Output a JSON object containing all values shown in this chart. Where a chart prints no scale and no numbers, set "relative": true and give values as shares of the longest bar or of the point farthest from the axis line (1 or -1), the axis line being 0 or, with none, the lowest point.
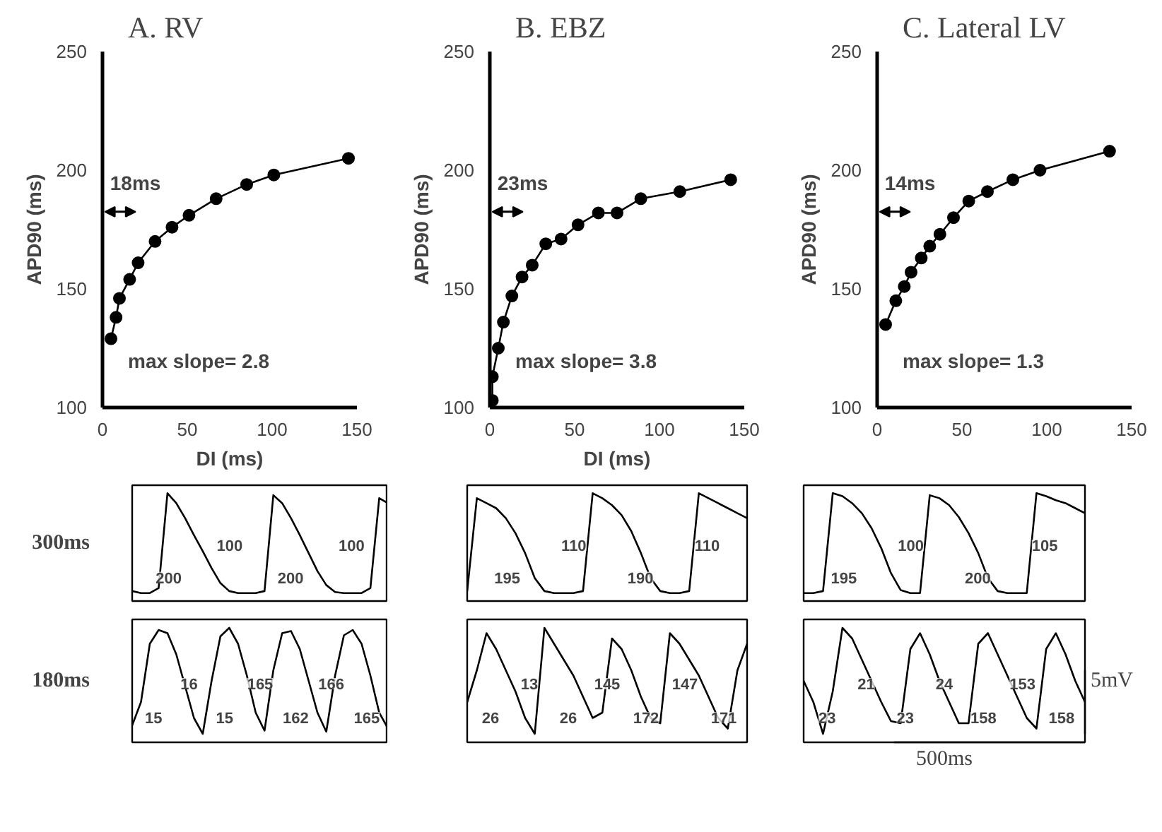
{
  "chart_data": [
    {
      "type": "line",
      "title": "A. RV",
      "xlabel": "DI (ms)",
      "ylabel": "APD90 (ms)",
      "marker": "circle",
      "xlim": [
        0,
        150
      ],
      "xticks": [
        0,
        50,
        100,
        150
      ],
      "ylim": [
        100,
        250
      ],
      "yticks": [
        100,
        150,
        200,
        250
      ],
      "annotations": [
        "18ms",
        "max slope= 2.8"
      ],
      "series": [
        {
          "color": "#000000",
          "x": [
            5,
            8,
            10,
            16,
            21,
            31,
            41,
            51,
            67,
            85,
            101,
            145
          ],
          "values": [
            129,
            138,
            146,
            154,
            161,
            170,
            176,
            181,
            188,
            194,
            198,
            205
          ]
        }
      ]
    },
    {
      "type": "line",
      "title": "B. EBZ",
      "xlabel": "DI (ms)",
      "ylabel": "APD90 (ms)",
      "marker": "circle",
      "xlim": [
        0,
        150
      ],
      "xticks": [
        0,
        50,
        100,
        150
      ],
      "ylim": [
        100,
        250
      ],
      "yticks": [
        100,
        150,
        200,
        250
      ],
      "annotations": [
        "23ms",
        "max slope= 3.8"
      ],
      "series": [
        {
          "color": "#000000",
          "x": [
            1.5,
            1.5,
            5,
            8,
            13,
            19,
            25,
            33,
            42,
            52,
            64,
            75,
            89,
            112,
            142
          ],
          "values": [
            103,
            113,
            125,
            136,
            147,
            155,
            160,
            169,
            171,
            177,
            182,
            182,
            188,
            191,
            196
          ]
        }
      ]
    },
    {
      "type": "line",
      "title": "C. Lateral LV",
      "ylabel": "APD90 (ms)",
      "marker": "circle",
      "xlim": [
        0,
        150
      ],
      "xticks": [
        0,
        50,
        100,
        150
      ],
      "ylim": [
        100,
        250
      ],
      "yticks": [
        100,
        150,
        200,
        250
      ],
      "annotations": [
        "14ms",
        "max slope= 1.3"
      ],
      "series": [
        {
          "color": "#000000",
          "x": [
            5,
            11,
            16,
            20,
            26,
            31,
            37,
            45,
            54,
            65,
            80,
            96,
            137
          ],
          "values": [
            135,
            145,
            151,
            157,
            163,
            168,
            173,
            180,
            187,
            191,
            196,
            200,
            208
          ]
        }
      ]
    },
    {
      "type": "line",
      "relative": true,
      "ylabel": "300ms",
      "annotations": [
        "200",
        "100",
        "200",
        "100"
      ],
      "categories": [
        null,
        null,
        null,
        null,
        null,
        null,
        null,
        null,
        null,
        null,
        null,
        null,
        null,
        null,
        null,
        null,
        null,
        null,
        null,
        null,
        null,
        null,
        null,
        null,
        null,
        null,
        null,
        null,
        null,
        null
      ],
      "series": [
        {
          "color": "#000000",
          "values": [
            0.02,
            0.0,
            0.0,
            0.05,
            1.0,
            0.9,
            0.75,
            0.58,
            0.42,
            0.25,
            0.1,
            0.02,
            0.0,
            0.0,
            0.0,
            0.02,
            0.98,
            0.9,
            0.75,
            0.58,
            0.4,
            0.22,
            0.08,
            0.01,
            0.0,
            0.0,
            0.0,
            0.05,
            0.95,
            0.9
          ]
        }
      ]
    },
    {
      "type": "line",
      "relative": true,
      "annotations": [
        "195",
        "110",
        "190",
        "110"
      ],
      "categories": [
        null,
        null,
        null,
        null,
        null,
        null,
        null,
        null,
        null,
        null,
        null,
        null,
        null,
        null,
        null,
        null,
        null,
        null,
        null,
        null,
        null,
        null,
        null,
        null,
        null,
        null,
        null,
        null,
        null,
        null
      ],
      "series": [
        {
          "color": "#000000",
          "values": [
            0.02,
            0.95,
            0.9,
            0.85,
            0.75,
            0.6,
            0.4,
            0.15,
            0.02,
            0.0,
            0.0,
            0.0,
            0.02,
            1.0,
            0.95,
            0.88,
            0.78,
            0.62,
            0.4,
            0.15,
            0.02,
            0.0,
            0.0,
            0.02,
            1.0,
            0.95,
            0.9,
            0.85,
            0.8,
            0.75
          ]
        }
      ]
    },
    {
      "type": "line",
      "relative": true,
      "annotations": [
        "195",
        "100",
        "200",
        "105"
      ],
      "categories": [
        null,
        null,
        null,
        null,
        null,
        null,
        null,
        null,
        null,
        null,
        null,
        null,
        null,
        null,
        null,
        null,
        null,
        null,
        null,
        null,
        null,
        null,
        null,
        null,
        null,
        null,
        null,
        null,
        null,
        null
      ],
      "series": [
        {
          "color": "#000000",
          "values": [
            0.0,
            0.0,
            0.02,
            1.0,
            0.97,
            0.9,
            0.8,
            0.65,
            0.45,
            0.2,
            0.03,
            0.0,
            0.0,
            0.98,
            0.95,
            0.88,
            0.76,
            0.6,
            0.4,
            0.15,
            0.02,
            0.0,
            0.0,
            0.0,
            1.0,
            0.97,
            0.93,
            0.9,
            0.85,
            0.8
          ]
        }
      ]
    },
    {
      "type": "line",
      "relative": true,
      "ylabel": "180ms",
      "annotations": [
        "15",
        "16",
        "15",
        "165",
        "162",
        "166",
        "165"
      ],
      "categories": [
        null,
        null,
        null,
        null,
        null,
        null,
        null,
        null,
        null,
        null,
        null,
        null,
        null,
        null,
        null,
        null,
        null,
        null,
        null,
        null,
        null,
        null,
        null,
        null,
        null,
        null,
        null,
        null,
        null,
        null
      ],
      "series": [
        {
          "color": "#000000",
          "values": [
            0.08,
            0.3,
            0.85,
            0.98,
            0.95,
            0.75,
            0.45,
            0.15,
            0.0,
            0.5,
            0.92,
            1.0,
            0.85,
            0.55,
            0.2,
            0.03,
            0.6,
            0.95,
            0.97,
            0.8,
            0.5,
            0.2,
            0.02,
            0.55,
            0.93,
            0.98,
            0.85,
            0.55,
            0.2,
            0.05
          ]
        }
      ]
    },
    {
      "type": "line",
      "relative": true,
      "annotations": [
        "26",
        "13",
        "26",
        "145",
        "172",
        "147",
        "171"
      ],
      "categories": [
        null,
        null,
        null,
        null,
        null,
        null,
        null,
        null,
        null,
        null,
        null,
        null,
        null,
        null,
        null,
        null,
        null,
        null,
        null,
        null,
        null,
        null,
        null,
        null,
        null,
        null,
        null,
        null,
        null,
        null
      ],
      "series": [
        {
          "color": "#000000",
          "values": [
            0.3,
            0.6,
            0.95,
            0.8,
            0.6,
            0.4,
            0.15,
            0.0,
            1.0,
            0.85,
            0.7,
            0.55,
            0.35,
            0.15,
            0.2,
            0.9,
            0.8,
            0.6,
            0.35,
            0.15,
            0.1,
            0.95,
            0.85,
            0.7,
            0.55,
            0.35,
            0.15,
            0.05,
            0.6,
            0.85
          ]
        }
      ]
    },
    {
      "type": "line",
      "relative": true,
      "xlabel": "500ms",
      "ylabel": "5mV",
      "annotations": [
        "23",
        "21",
        "23",
        "24",
        "158",
        "153",
        "158"
      ],
      "categories": [
        null,
        null,
        null,
        null,
        null,
        null,
        null,
        null,
        null,
        null,
        null,
        null,
        null,
        null,
        null,
        null,
        null,
        null,
        null,
        null,
        null,
        null,
        null,
        null,
        null,
        null,
        null,
        null,
        null,
        null
      ],
      "series": [
        {
          "color": "#000000",
          "values": [
            0.5,
            0.3,
            0.0,
            0.4,
            1.0,
            0.9,
            0.7,
            0.5,
            0.3,
            0.12,
            0.1,
            0.8,
            0.95,
            0.75,
            0.5,
            0.3,
            0.1,
            0.1,
            0.85,
            0.95,
            0.75,
            0.55,
            0.35,
            0.15,
            0.05,
            0.8,
            0.95,
            0.75,
            0.5,
            0.3
          ]
        }
      ]
    }
  ]
}
